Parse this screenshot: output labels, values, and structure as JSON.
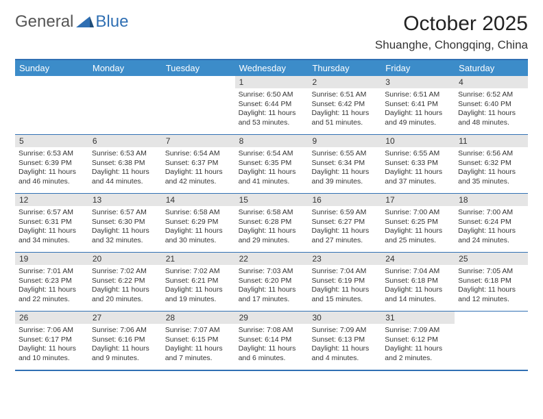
{
  "logo": {
    "text1": "General",
    "text2": "Blue",
    "triangle_color": "#2f6fb3"
  },
  "title": "October 2025",
  "location": "Shuanghe, Chongqing, China",
  "colors": {
    "header_bg": "#3c8cc9",
    "border": "#2f6fb3",
    "daynum_bg": "#e5e5e5",
    "text": "#333333",
    "bg": "#ffffff"
  },
  "day_names": [
    "Sunday",
    "Monday",
    "Tuesday",
    "Wednesday",
    "Thursday",
    "Friday",
    "Saturday"
  ],
  "weeks": [
    [
      {
        "n": "",
        "empty": true
      },
      {
        "n": "",
        "empty": true
      },
      {
        "n": "",
        "empty": true
      },
      {
        "n": "1",
        "sr": "6:50 AM",
        "ss": "6:44 PM",
        "dl": "11 hours and 53 minutes."
      },
      {
        "n": "2",
        "sr": "6:51 AM",
        "ss": "6:42 PM",
        "dl": "11 hours and 51 minutes."
      },
      {
        "n": "3",
        "sr": "6:51 AM",
        "ss": "6:41 PM",
        "dl": "11 hours and 49 minutes."
      },
      {
        "n": "4",
        "sr": "6:52 AM",
        "ss": "6:40 PM",
        "dl": "11 hours and 48 minutes."
      }
    ],
    [
      {
        "n": "5",
        "sr": "6:53 AM",
        "ss": "6:39 PM",
        "dl": "11 hours and 46 minutes."
      },
      {
        "n": "6",
        "sr": "6:53 AM",
        "ss": "6:38 PM",
        "dl": "11 hours and 44 minutes."
      },
      {
        "n": "7",
        "sr": "6:54 AM",
        "ss": "6:37 PM",
        "dl": "11 hours and 42 minutes."
      },
      {
        "n": "8",
        "sr": "6:54 AM",
        "ss": "6:35 PM",
        "dl": "11 hours and 41 minutes."
      },
      {
        "n": "9",
        "sr": "6:55 AM",
        "ss": "6:34 PM",
        "dl": "11 hours and 39 minutes."
      },
      {
        "n": "10",
        "sr": "6:55 AM",
        "ss": "6:33 PM",
        "dl": "11 hours and 37 minutes."
      },
      {
        "n": "11",
        "sr": "6:56 AM",
        "ss": "6:32 PM",
        "dl": "11 hours and 35 minutes."
      }
    ],
    [
      {
        "n": "12",
        "sr": "6:57 AM",
        "ss": "6:31 PM",
        "dl": "11 hours and 34 minutes."
      },
      {
        "n": "13",
        "sr": "6:57 AM",
        "ss": "6:30 PM",
        "dl": "11 hours and 32 minutes."
      },
      {
        "n": "14",
        "sr": "6:58 AM",
        "ss": "6:29 PM",
        "dl": "11 hours and 30 minutes."
      },
      {
        "n": "15",
        "sr": "6:58 AM",
        "ss": "6:28 PM",
        "dl": "11 hours and 29 minutes."
      },
      {
        "n": "16",
        "sr": "6:59 AM",
        "ss": "6:27 PM",
        "dl": "11 hours and 27 minutes."
      },
      {
        "n": "17",
        "sr": "7:00 AM",
        "ss": "6:25 PM",
        "dl": "11 hours and 25 minutes."
      },
      {
        "n": "18",
        "sr": "7:00 AM",
        "ss": "6:24 PM",
        "dl": "11 hours and 24 minutes."
      }
    ],
    [
      {
        "n": "19",
        "sr": "7:01 AM",
        "ss": "6:23 PM",
        "dl": "11 hours and 22 minutes."
      },
      {
        "n": "20",
        "sr": "7:02 AM",
        "ss": "6:22 PM",
        "dl": "11 hours and 20 minutes."
      },
      {
        "n": "21",
        "sr": "7:02 AM",
        "ss": "6:21 PM",
        "dl": "11 hours and 19 minutes."
      },
      {
        "n": "22",
        "sr": "7:03 AM",
        "ss": "6:20 PM",
        "dl": "11 hours and 17 minutes."
      },
      {
        "n": "23",
        "sr": "7:04 AM",
        "ss": "6:19 PM",
        "dl": "11 hours and 15 minutes."
      },
      {
        "n": "24",
        "sr": "7:04 AM",
        "ss": "6:18 PM",
        "dl": "11 hours and 14 minutes."
      },
      {
        "n": "25",
        "sr": "7:05 AM",
        "ss": "6:18 PM",
        "dl": "11 hours and 12 minutes."
      }
    ],
    [
      {
        "n": "26",
        "sr": "7:06 AM",
        "ss": "6:17 PM",
        "dl": "11 hours and 10 minutes."
      },
      {
        "n": "27",
        "sr": "7:06 AM",
        "ss": "6:16 PM",
        "dl": "11 hours and 9 minutes."
      },
      {
        "n": "28",
        "sr": "7:07 AM",
        "ss": "6:15 PM",
        "dl": "11 hours and 7 minutes."
      },
      {
        "n": "29",
        "sr": "7:08 AM",
        "ss": "6:14 PM",
        "dl": "11 hours and 6 minutes."
      },
      {
        "n": "30",
        "sr": "7:09 AM",
        "ss": "6:13 PM",
        "dl": "11 hours and 4 minutes."
      },
      {
        "n": "31",
        "sr": "7:09 AM",
        "ss": "6:12 PM",
        "dl": "11 hours and 2 minutes."
      },
      {
        "n": "",
        "empty": true
      }
    ]
  ],
  "labels": {
    "sunrise": "Sunrise:",
    "sunset": "Sunset:",
    "daylight": "Daylight:"
  }
}
